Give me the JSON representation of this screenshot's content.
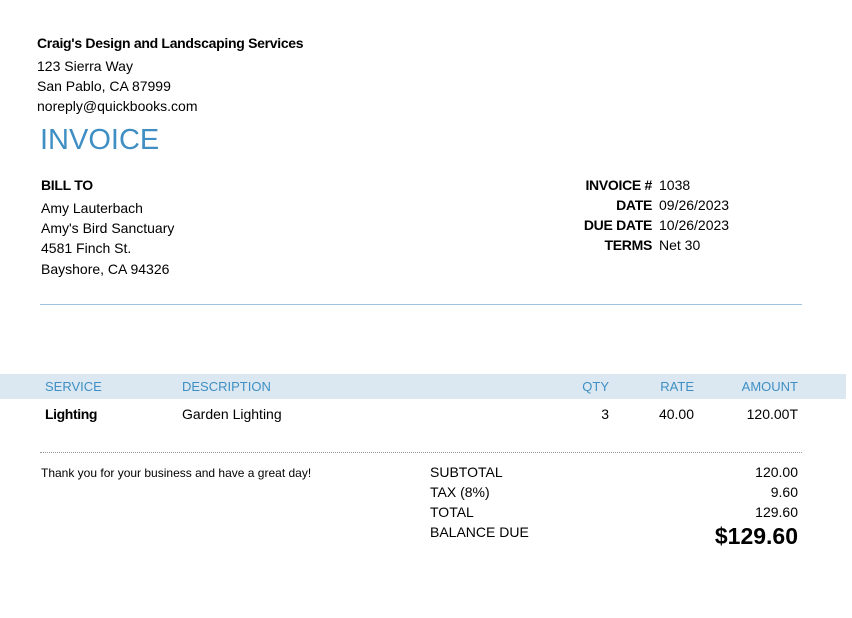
{
  "company": {
    "name": "Craig's Design and Landscaping Services",
    "address1": "123 Sierra Way",
    "address2": "San Pablo, CA  87999",
    "email": "noreply@quickbooks.com"
  },
  "title": "INVOICE",
  "bill_to": {
    "heading": "BILL TO",
    "lines": [
      "Amy Lauterbach",
      "Amy's Bird Sanctuary",
      "4581 Finch St.",
      "Bayshore, CA  94326"
    ]
  },
  "meta": [
    {
      "label": "INVOICE #",
      "value": "1038"
    },
    {
      "label": "DATE",
      "value": "09/26/2023"
    },
    {
      "label": "DUE DATE",
      "value": "10/26/2023"
    },
    {
      "label": "TERMS",
      "value": "Net 30"
    }
  ],
  "table": {
    "headers": {
      "service": "SERVICE",
      "description": "DESCRIPTION",
      "qty": "QTY",
      "rate": "RATE",
      "amount": "AMOUNT"
    },
    "rows": [
      {
        "service": "Lighting",
        "description": "Garden Lighting",
        "qty": "3",
        "rate": "40.00",
        "amount": "120.00T"
      }
    ]
  },
  "message": "Thank you for your business and have a great day!",
  "totals": [
    {
      "label": "SUBTOTAL",
      "value": "120.00"
    },
    {
      "label": "TAX (8%)",
      "value": "9.60"
    },
    {
      "label": "TOTAL",
      "value": "129.60"
    },
    {
      "label": "BALANCE DUE",
      "value": "$129.60"
    }
  ],
  "colors": {
    "accent": "#3f8fc4",
    "header_bg": "#dbe8f1"
  }
}
